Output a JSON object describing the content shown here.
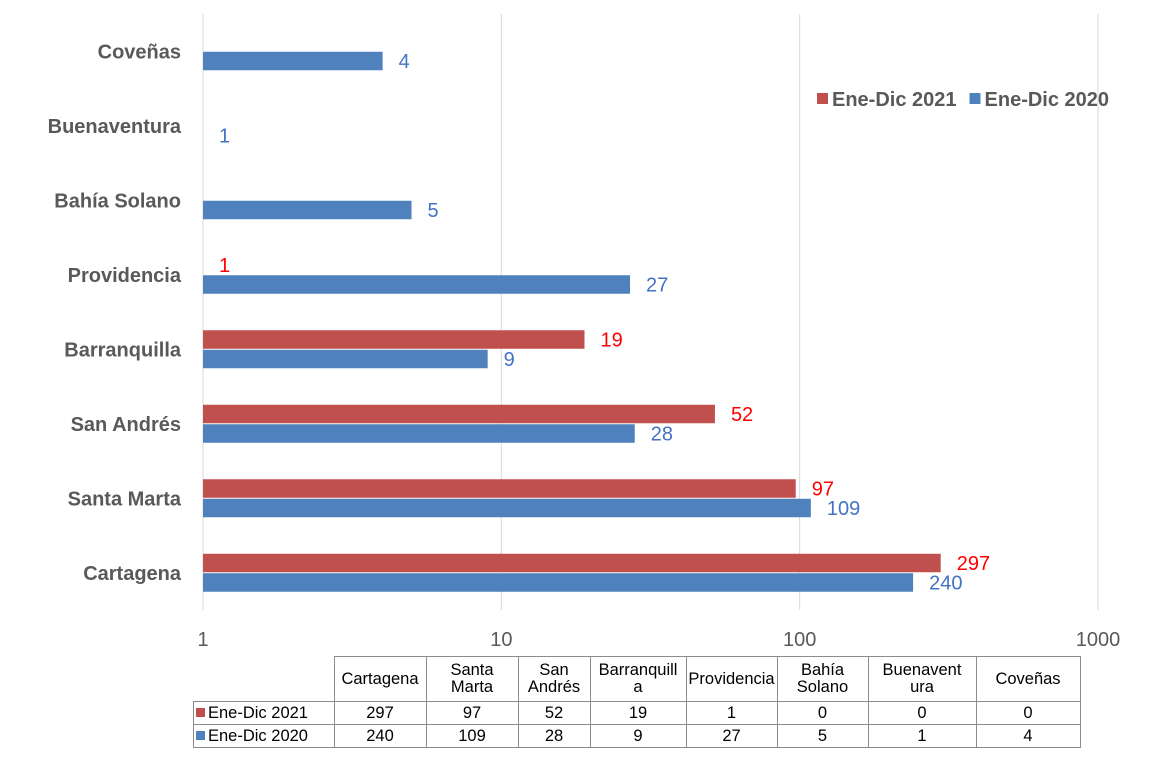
{
  "chart_data": {
    "type": "bar",
    "orientation": "horizontal",
    "x_scale": "log",
    "xlim": [
      1,
      1000
    ],
    "x_ticks": [
      "1",
      "10",
      "100",
      "1000"
    ],
    "grid": "vertical",
    "legend_position": "top-right",
    "categories": [
      "Cartagena",
      "Santa Marta",
      "San Andrés",
      "Barranquilla",
      "Providencia",
      "Bahía Solano",
      "Buenaventura",
      "Coveñas"
    ],
    "series": [
      {
        "name": "Ene-Dic 2021",
        "color": "#c0504d",
        "label_color": "#ff0000",
        "values": [
          297,
          97,
          52,
          19,
          1,
          0,
          0,
          0
        ]
      },
      {
        "name": "Ene-Dic 2020",
        "color": "#4f81bd",
        "label_color": "#4472c4",
        "values": [
          240,
          109,
          28,
          9,
          27,
          5,
          1,
          4
        ]
      }
    ]
  },
  "table": {
    "headers": [
      "Cartagena",
      "Santa Marta",
      "San Andrés",
      "Barranquill a",
      "Providencia",
      "Bahía Solano",
      "Buenavent ura",
      "Coveñas"
    ]
  }
}
